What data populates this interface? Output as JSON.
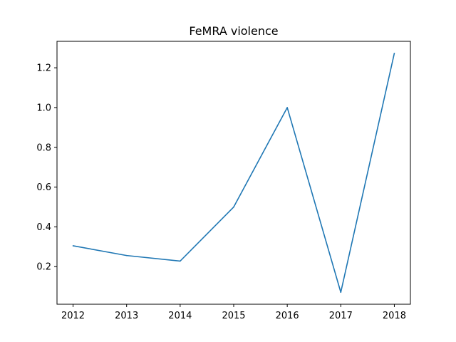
{
  "chart_data": {
    "type": "line",
    "title": "FeMRA violence",
    "xlabel": "",
    "ylabel": "",
    "x": [
      2012,
      2013,
      2014,
      2015,
      2016,
      2017,
      2018
    ],
    "x_tick_labels": [
      "2012",
      "2013",
      "2014",
      "2015",
      "2016",
      "2017",
      "2018"
    ],
    "series": [
      {
        "values": [
          0.305,
          0.256,
          0.228,
          0.5,
          1.0,
          0.071,
          1.273
        ],
        "color": "#1f77b4"
      }
    ],
    "y_ticks": [
      0.2,
      0.4,
      0.6,
      0.8,
      1.0,
      1.2
    ],
    "y_tick_labels": [
      "0.2",
      "0.4",
      "0.6",
      "0.8",
      "1.0",
      "1.2"
    ],
    "xlim": [
      2011.7,
      2018.3
    ],
    "ylim": [
      0.011,
      1.333
    ],
    "grid": false,
    "legend": "none"
  }
}
